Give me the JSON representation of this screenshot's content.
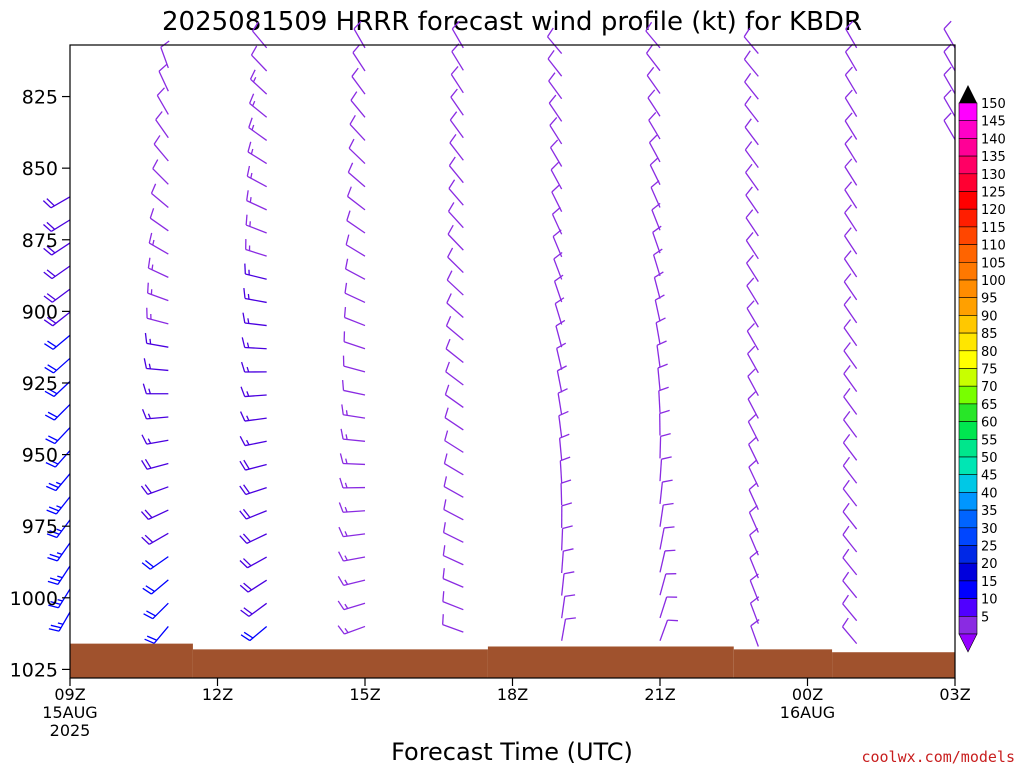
{
  "chart_data": {
    "type": "wind-barb-profile",
    "title": "2025081509 HRRR forecast wind profile (kt) for KBDR",
    "xlabel": "Forecast Time (UTC)",
    "ylabel": "",
    "credit": "coolwx.com/models",
    "y_axis": {
      "label": "",
      "range": [
        807,
        1028
      ],
      "ticks": [
        {
          "value": 825,
          "label": "825"
        },
        {
          "value": 850,
          "label": "850"
        },
        {
          "value": 875,
          "label": "875"
        },
        {
          "value": 900,
          "label": "900"
        },
        {
          "value": 925,
          "label": "925"
        },
        {
          "value": 950,
          "label": "950"
        },
        {
          "value": 975,
          "label": "975"
        },
        {
          "value": 1000,
          "label": "1000"
        },
        {
          "value": 1025,
          "label": "1025"
        }
      ]
    },
    "x_axis": {
      "range": [
        0,
        18
      ],
      "ticks": [
        {
          "hour": 0,
          "lines": [
            "09Z",
            "15AUG",
            "2025"
          ]
        },
        {
          "hour": 3,
          "lines": [
            "12Z"
          ]
        },
        {
          "hour": 6,
          "lines": [
            "15Z"
          ]
        },
        {
          "hour": 9,
          "lines": [
            "18Z"
          ]
        },
        {
          "hour": 12,
          "lines": [
            "21Z"
          ]
        },
        {
          "hour": 15,
          "lines": [
            "00Z",
            "16AUG"
          ]
        },
        {
          "hour": 18,
          "lines": [
            "03Z"
          ]
        }
      ]
    },
    "surface_pressure": [
      {
        "from": 0,
        "to": 2.5,
        "p": 1016
      },
      {
        "from": 2.5,
        "to": 8.5,
        "p": 1018
      },
      {
        "from": 8.5,
        "to": 13.5,
        "p": 1017
      },
      {
        "from": 13.5,
        "to": 15.5,
        "p": 1018
      },
      {
        "from": 15.5,
        "to": 18,
        "p": 1019
      }
    ],
    "profiles": [
      {
        "hour": 0,
        "top": 860,
        "bottom": 1005,
        "speed_top": 18,
        "speed_bottom": 25,
        "dir_top": 240,
        "dir_bottom": 210
      },
      {
        "hour": 2,
        "top": 815,
        "bottom": 1010,
        "speed_top": 8,
        "speed_bottom": 22,
        "dir_top": 340,
        "dir_bottom": 220
      },
      {
        "hour": 4,
        "top": 808,
        "bottom": 1010,
        "speed_top": 12,
        "speed_bottom": 20,
        "dir_top": 320,
        "dir_bottom": 230
      },
      {
        "hour": 6,
        "top": 808,
        "bottom": 1010,
        "speed_top": 10,
        "speed_bottom": 14,
        "dir_top": 330,
        "dir_bottom": 250
      },
      {
        "hour": 8,
        "top": 808,
        "bottom": 1012,
        "speed_top": 8,
        "speed_bottom": 12,
        "dir_top": 330,
        "dir_bottom": 290
      },
      {
        "hour": 10,
        "top": 810,
        "bottom": 1015,
        "speed_top": 9,
        "speed_bottom": 8,
        "dir_top": 320,
        "dir_bottom": 10
      },
      {
        "hour": 12,
        "top": 808,
        "bottom": 1015,
        "speed_top": 10,
        "speed_bottom": 8,
        "dir_top": 320,
        "dir_bottom": 20
      },
      {
        "hour": 14,
        "top": 810,
        "bottom": 1017,
        "speed_top": 10,
        "speed_bottom": 10,
        "dir_top": 320,
        "dir_bottom": 340
      },
      {
        "hour": 16,
        "top": 808,
        "bottom": 1016,
        "speed_top": 10,
        "speed_bottom": 12,
        "dir_top": 330,
        "dir_bottom": 320
      },
      {
        "hour": 18,
        "top": 808,
        "bottom": 840,
        "speed_top": 12,
        "speed_bottom": 12,
        "dir_top": 330,
        "dir_bottom": 330
      }
    ],
    "barb_colors": {
      "low": "#8a2be2",
      "mid": "#4a00e0",
      "high": "#0000ff"
    },
    "ground_color": "#a0522d",
    "legend": {
      "placement": "right",
      "labels": [
        "150",
        "145",
        "140",
        "135",
        "130",
        "125",
        "120",
        "115",
        "110",
        "105",
        "100",
        "95",
        "90",
        "85",
        "80",
        "75",
        "70",
        "65",
        "60",
        "55",
        "50",
        "45",
        "40",
        "35",
        "30",
        "25",
        "20",
        "15",
        "10",
        "5"
      ],
      "colors": [
        "#ff00ff",
        "#ff00c8",
        "#ff0096",
        "#ff0064",
        "#ff0032",
        "#ff0000",
        "#ff1e00",
        "#ff4600",
        "#ff6400",
        "#ff7800",
        "#ff8c00",
        "#ffa000",
        "#ffc800",
        "#ffe600",
        "#ffff00",
        "#c8ff00",
        "#78ff00",
        "#28e628",
        "#00e650",
        "#00e68c",
        "#00e6b4",
        "#00c8e6",
        "#0096ff",
        "#0064ff",
        "#0046ff",
        "#0028e6",
        "#0000dc",
        "#0000ff",
        "#5000ff",
        "#8a2be2"
      ],
      "top_arrow_color": "#000000",
      "bottom_arrow_color": "#9400ff"
    }
  }
}
